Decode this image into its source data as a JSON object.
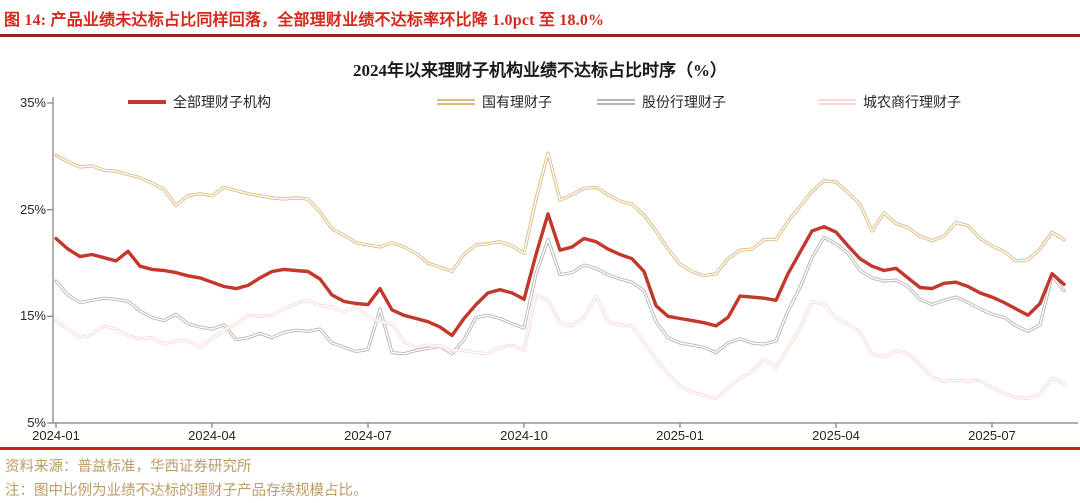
{
  "figure": {
    "caption": "图 14:  产品业绩未达标占比同样回落，全部理财业绩不达标率环比降 1.0pct 至 18.0%",
    "source": "资料来源：普益标准，华西证券研究所",
    "note": "注：图中比例为业绩不达标的理财子产品存续规模占比。"
  },
  "palette": {
    "caption_red": "#d7281d",
    "rule_top": "#9c2321",
    "rule_bottom": "#c2241a",
    "axis": "#7f7f7f",
    "tick_label": "#262626",
    "footer_text": "#bd9c66"
  },
  "chart_data": {
    "type": "line",
    "title": "2024年以来理财子机构业绩不达标占比时序（%）",
    "unit": "%",
    "ylim": [
      5,
      35
    ],
    "grid": false,
    "legend_position": "top",
    "y_ticks": [
      35,
      25,
      15,
      5
    ],
    "y_tick_labels": [
      "35%",
      "25%",
      "15%",
      "5%"
    ],
    "x_tick_labels": [
      "2024-01",
      "2024-04",
      "2024-07",
      "2024-10",
      "2025-01",
      "2025-04",
      "2025-07"
    ],
    "x_tick_weeks": [
      0,
      13,
      26,
      39,
      52,
      65,
      78
    ],
    "n_points": 85,
    "x_frequency": "weekly",
    "series": [
      {
        "name": "全部理财子机构",
        "color": "#c2382b",
        "style": "solid-thick",
        "values": [
          22.3,
          21.3,
          20.6,
          20.8,
          20.5,
          20.2,
          21.1,
          19.7,
          19.4,
          19.3,
          19.1,
          18.8,
          18.6,
          18.2,
          17.8,
          17.6,
          17.9,
          18.6,
          19.2,
          19.4,
          19.3,
          19.2,
          18.5,
          17.0,
          16.4,
          16.2,
          16.1,
          17.6,
          15.6,
          15.1,
          14.8,
          14.5,
          14.0,
          13.2,
          14.8,
          16.1,
          17.2,
          17.5,
          17.2,
          16.6,
          20.8,
          24.6,
          21.2,
          21.5,
          22.3,
          22.0,
          21.3,
          20.8,
          20.4,
          19.2,
          16.0,
          15.0,
          14.8,
          14.6,
          14.4,
          14.1,
          14.9,
          16.9,
          16.8,
          16.7,
          16.5,
          19.0,
          21.0,
          23.0,
          23.4,
          22.9,
          21.6,
          20.4,
          19.7,
          19.3,
          19.5,
          18.6,
          17.7,
          17.6,
          18.1,
          18.2,
          17.8,
          17.2,
          16.8,
          16.3,
          15.7,
          15.1,
          16.2,
          19.0,
          18.0
        ]
      },
      {
        "name": "国有理财子",
        "color": "#dcb97e",
        "style": "outlined",
        "values": [
          30.1,
          29.5,
          29.0,
          29.1,
          28.7,
          28.6,
          28.3,
          28.0,
          27.5,
          26.9,
          25.4,
          26.3,
          26.5,
          26.3,
          27.1,
          26.8,
          26.5,
          26.3,
          26.1,
          26.0,
          26.1,
          26.0,
          24.8,
          23.2,
          22.6,
          21.9,
          21.7,
          21.5,
          21.9,
          21.5,
          20.9,
          20.0,
          19.6,
          19.2,
          20.8,
          21.7,
          21.8,
          22.0,
          21.6,
          20.9,
          26.0,
          30.3,
          25.9,
          26.4,
          27.0,
          27.1,
          26.4,
          25.8,
          25.5,
          24.5,
          23.0,
          21.3,
          19.9,
          19.2,
          18.8,
          19.0,
          20.4,
          21.2,
          21.3,
          22.2,
          22.2,
          23.9,
          25.3,
          26.7,
          27.7,
          27.6,
          26.6,
          25.5,
          23.0,
          24.7,
          23.7,
          23.3,
          22.5,
          22.1,
          22.5,
          23.8,
          23.5,
          22.3,
          21.6,
          21.1,
          20.2,
          20.3,
          21.3,
          22.9,
          22.2
        ]
      },
      {
        "name": "股份行理财子",
        "color": "#b5b5b5",
        "style": "outlined",
        "values": [
          18.3,
          17.0,
          16.3,
          16.5,
          16.7,
          16.6,
          16.4,
          15.5,
          14.9,
          14.6,
          15.2,
          14.3,
          14.0,
          13.8,
          14.2,
          12.8,
          13.0,
          13.4,
          13.0,
          13.5,
          13.7,
          13.6,
          13.8,
          12.5,
          12.1,
          11.7,
          11.9,
          15.7,
          11.6,
          11.5,
          11.8,
          12.0,
          12.2,
          11.5,
          12.8,
          14.9,
          15.1,
          14.8,
          14.3,
          13.9,
          19.0,
          22.2,
          18.9,
          19.1,
          19.8,
          19.5,
          18.9,
          18.5,
          18.2,
          17.4,
          14.5,
          13.0,
          12.5,
          12.3,
          12.1,
          11.6,
          12.5,
          12.9,
          12.5,
          12.4,
          12.7,
          15.5,
          17.7,
          20.5,
          22.4,
          21.8,
          20.9,
          19.3,
          18.6,
          18.3,
          18.4,
          17.8,
          16.6,
          16.1,
          16.5,
          16.8,
          16.3,
          15.7,
          15.2,
          14.9,
          14.1,
          13.6,
          14.2,
          18.8,
          17.4
        ]
      },
      {
        "name": "城农商行理财子",
        "color": "#f8d9d5",
        "style": "outlined",
        "values": [
          14.6,
          13.8,
          13.0,
          13.3,
          14.1,
          13.8,
          13.2,
          12.9,
          13.0,
          12.4,
          12.7,
          12.7,
          12.1,
          12.9,
          13.7,
          14.3,
          15.1,
          15.0,
          15.1,
          15.7,
          16.2,
          16.5,
          16.0,
          15.9,
          15.4,
          15.9,
          15.0,
          14.5,
          14.3,
          12.6,
          12.1,
          12.3,
          12.2,
          11.8,
          11.8,
          11.6,
          11.5,
          12.1,
          12.3,
          11.8,
          17.0,
          16.5,
          14.4,
          14.1,
          14.9,
          16.9,
          14.5,
          14.2,
          14.1,
          12.6,
          11.0,
          9.6,
          8.5,
          7.9,
          7.6,
          7.3,
          8.3,
          9.2,
          9.8,
          11.0,
          10.2,
          12.0,
          13.9,
          16.4,
          16.1,
          14.9,
          14.3,
          13.5,
          11.5,
          11.2,
          11.8,
          11.5,
          10.5,
          9.3,
          8.9,
          9.0,
          8.9,
          9.0,
          8.3,
          7.8,
          7.4,
          7.3,
          7.7,
          9.2,
          8.7
        ]
      }
    ]
  }
}
